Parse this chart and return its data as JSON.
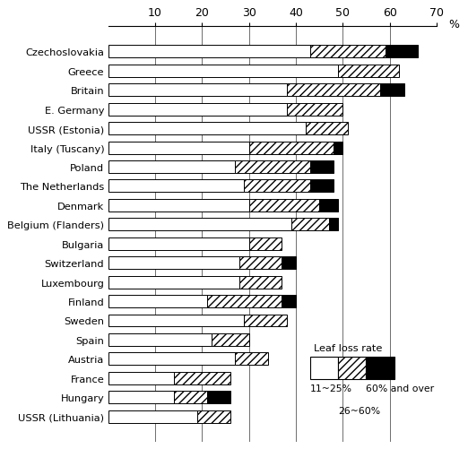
{
  "countries": [
    "Czechoslovakia",
    "Greece",
    "Britain",
    "E. Germany",
    "USSR (Estonia)",
    "Italy (Tuscany)",
    "Poland",
    "The Netherlands",
    "Denmark",
    "Belgium (Flanders)",
    "Bulgaria",
    "Switzerland",
    "Luxembourg",
    "Finland",
    "Sweden",
    "Spain",
    "Austria",
    "France",
    "Hungary",
    "USSR (Lithuania)"
  ],
  "white_vals": [
    43,
    49,
    38,
    38,
    42,
    30,
    27,
    29,
    30,
    39,
    30,
    28,
    28,
    21,
    29,
    22,
    27,
    14,
    14,
    19
  ],
  "hatch_vals": [
    16,
    13,
    20,
    12,
    9,
    18,
    16,
    14,
    15,
    8,
    7,
    9,
    9,
    16,
    9,
    8,
    7,
    12,
    7,
    7
  ],
  "black_vals": [
    7,
    0,
    5,
    0,
    0,
    2,
    5,
    5,
    4,
    2,
    0,
    3,
    0,
    3,
    0,
    0,
    0,
    0,
    5,
    0
  ],
  "xlim": [
    0,
    70
  ],
  "xticks": [
    10,
    20,
    30,
    40,
    50,
    60,
    70
  ],
  "bar_height": 0.65,
  "hatch_pattern": "////",
  "legend_label_white": "11~25%",
  "legend_label_hatch": "26~60%",
  "legend_label_black": "60% and over",
  "xlabel_unit": "%"
}
